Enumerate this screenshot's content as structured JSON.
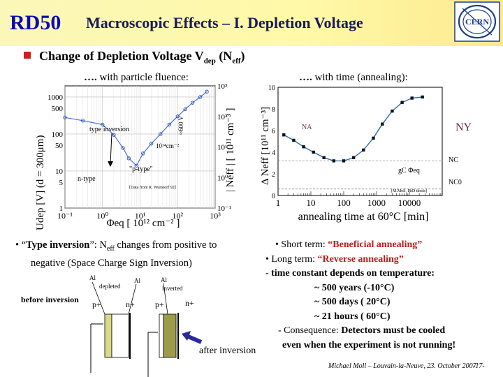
{
  "header": {
    "logo_text": "RD50",
    "title": "Macroscopic Effects – I. Depletion Voltage",
    "cern_logo": "CERN"
  },
  "subtitle": {
    "main": "Change of Depletion Voltage V",
    "dep_sub": "dep",
    "mid": " (N",
    "eff_sub": "eff",
    "end": ")"
  },
  "left_panel": {
    "dots": "…. ",
    "heading": "with particle fluence:",
    "annotations": {
      "type_inversion": "type inversion",
      "v600": "≈600 V",
      "fluence": "10¹⁴cm⁻²",
      "n_type": "n-type",
      "p_type": "\"p-type\"",
      "credit": "[Data from R. Wunstorf 92]"
    }
  },
  "right_panel": {
    "dots": "…. ",
    "heading": "with time (annealing):",
    "annotations": {
      "ny": "NY",
      "na": "NA",
      "nc": "NC",
      "gc": "gC Φeq",
      "nc0": "NC0",
      "credit": "[M.Moll, PhD thesis]"
    }
  },
  "chart_data": [
    {
      "type": "scatter",
      "title": "",
      "xlabel": "Φeq [ 10¹² cm⁻² ]",
      "ylabel_left": "Udep [V] (d = 300μm)",
      "ylabel_right": "| Neff | [ 10¹¹ cm⁻³ ]",
      "xscale": "log",
      "xlim": [
        0.1,
        1000
      ],
      "x_ticks": [
        "10⁻¹",
        "10⁰",
        "10¹",
        "10²",
        "10³"
      ],
      "y_left_ticks": [
        "1000",
        "500",
        "100",
        "50",
        "10",
        "5",
        "1"
      ],
      "y_right_ticks": [
        "10³",
        "10²",
        "10¹",
        "10⁰",
        "10⁻¹"
      ],
      "grid": true,
      "series": [
        {
          "points": [
            [
              0.1,
              280
            ],
            [
              0.3,
              230
            ],
            [
              1,
              180
            ],
            [
              2,
              95
            ],
            [
              3.5,
              42
            ],
            [
              5,
              22
            ],
            [
              8,
              14
            ],
            [
              12,
              30
            ],
            [
              20,
              55
            ],
            [
              35,
              100
            ],
            [
              60,
              180
            ],
            [
              100,
              300
            ],
            [
              160,
              470
            ],
            [
              250,
              700
            ],
            [
              400,
              1000
            ],
            [
              600,
              1400
            ]
          ]
        }
      ]
    },
    {
      "type": "scatter",
      "title": "",
      "xlabel": "annealing time at 60°C [min]",
      "ylabel": "Δ Neff [10¹¹ cm⁻³]",
      "xscale": "log",
      "xlim": [
        1,
        100000
      ],
      "ylim": [
        0,
        10
      ],
      "x_ticks": [
        "1",
        "10",
        "100",
        "1000",
        "10000"
      ],
      "y_ticks": [
        "0",
        "2",
        "4",
        "6",
        "8",
        "10"
      ],
      "series": [
        {
          "points": [
            [
              1.5,
              5.6
            ],
            [
              3,
              5.1
            ],
            [
              6,
              4.5
            ],
            [
              12,
              4.0
            ],
            [
              25,
              3.5
            ],
            [
              50,
              3.2
            ],
            [
              100,
              3.2
            ],
            [
              200,
              3.5
            ],
            [
              400,
              4.2
            ],
            [
              800,
              5.3
            ],
            [
              1500,
              6.6
            ],
            [
              3000,
              7.8
            ],
            [
              6000,
              8.6
            ],
            [
              12000,
              9.0
            ],
            [
              25000,
              9.1
            ]
          ]
        }
      ]
    }
  ],
  "notes_left": {
    "bullet": "• “",
    "term": "Type inversion",
    "text1": "”: N",
    "eff_sub": "eff",
    "text2": " changes from positive to",
    "line2": "negative (Space Charge Sign Inversion)"
  },
  "notes_right": {
    "l1_pre": "• Short term: ",
    "l1_red": "“Beneficial annealing”",
    "l2_pre": "• Long term: ",
    "l2_red": "“Reverse annealing”",
    "l3": "- time constant depends on temperature:",
    "l4": "~ 500 years (-10°C)",
    "l5": "~ 500 days  ( 20°C)",
    "l6": "~  21 hours ( 60°C)",
    "l7_pre": "- Consequence: ",
    "l7_b": "Detectors must be cooled",
    "l8": "even when the experiment is not running!"
  },
  "diagram": {
    "before_label": "before inversion",
    "after_label": "after inversion",
    "al1": "Al",
    "depleted": "depleted",
    "al2": "Al",
    "p1": "p+",
    "n1": "n+",
    "al3": "Al",
    "inverted": "inverted",
    "p2": "p+",
    "n2": "n+"
  },
  "footer": {
    "credit": "Michael Moll – Louvain-la-Neuve, 23. October 2007",
    "page": "-17-"
  }
}
